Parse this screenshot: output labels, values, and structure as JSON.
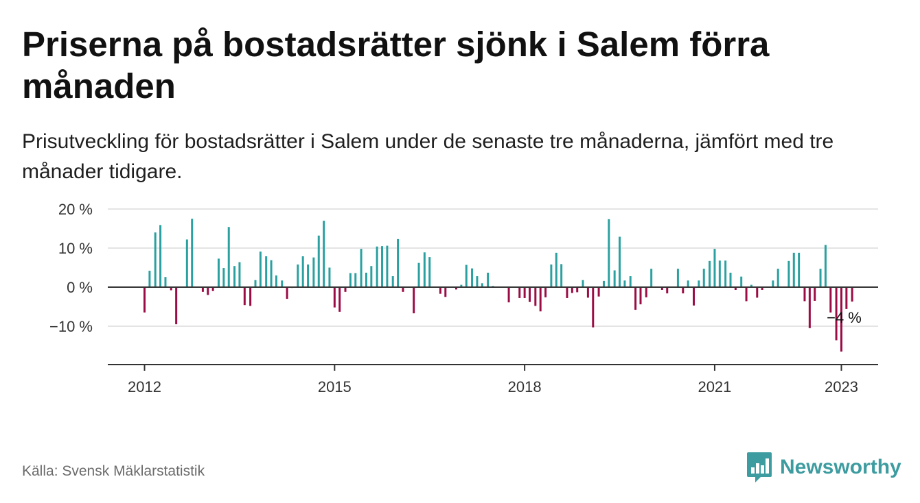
{
  "header": {
    "title": "Priserna på bostadsrätter sjönk i Salem förra månaden",
    "subtitle": "Prisutveckling för bostadsrätter i Salem under de senaste tre månaderna, jämfört med tre månader tidigare."
  },
  "footer": {
    "source": "Källa: Svensk Mäklarstatistik",
    "brand": "Newsworthy"
  },
  "colors": {
    "positive": "#2aa1a0",
    "negative": "#9b0c45",
    "grid": "#dcdcdc",
    "axis": "#333333",
    "brand": "#3d9ca0"
  },
  "chart_data": {
    "type": "bar",
    "ylim": [
      -20,
      20
    ],
    "y_ticks": [
      {
        "value": 20,
        "label": "20 %"
      },
      {
        "value": 10,
        "label": "10 %"
      },
      {
        "value": 0,
        "label": "0 %"
      },
      {
        "value": -10,
        "label": "−10 %"
      }
    ],
    "x_ticks": [
      {
        "value": 2012,
        "label": "2012"
      },
      {
        "value": 2015,
        "label": "2015"
      },
      {
        "value": 2018,
        "label": "2018"
      },
      {
        "value": 2021,
        "label": "2021"
      },
      {
        "value": 2023,
        "label": "2023"
      }
    ],
    "xlim": [
      2011.42,
      2023.58
    ],
    "grid": "horizontal",
    "annotation": {
      "label": "−4 %",
      "x": 2023.0
    },
    "points": [
      [
        2012.0,
        -6.5
      ],
      [
        2012.08,
        4.2
      ],
      [
        2012.17,
        14.0
      ],
      [
        2012.25,
        15.9
      ],
      [
        2012.33,
        2.6
      ],
      [
        2012.42,
        -0.8
      ],
      [
        2012.5,
        -9.5
      ],
      [
        2012.67,
        12.2
      ],
      [
        2012.75,
        17.5
      ],
      [
        2012.92,
        -1.2
      ],
      [
        2013.0,
        -2.0
      ],
      [
        2013.08,
        -1.0
      ],
      [
        2013.17,
        7.3
      ],
      [
        2013.25,
        4.9
      ],
      [
        2013.33,
        15.4
      ],
      [
        2013.42,
        5.4
      ],
      [
        2013.5,
        6.4
      ],
      [
        2013.58,
        -4.6
      ],
      [
        2013.67,
        -4.8
      ],
      [
        2013.75,
        1.8
      ],
      [
        2013.83,
        9.1
      ],
      [
        2013.92,
        7.9
      ],
      [
        2014.0,
        6.9
      ],
      [
        2014.08,
        3.0
      ],
      [
        2014.17,
        1.7
      ],
      [
        2014.25,
        -3.0
      ],
      [
        2014.33,
        -0.2
      ],
      [
        2014.42,
        5.8
      ],
      [
        2014.5,
        7.9
      ],
      [
        2014.58,
        5.8
      ],
      [
        2014.67,
        7.6
      ],
      [
        2014.75,
        13.2
      ],
      [
        2014.83,
        17.0
      ],
      [
        2014.92,
        5.0
      ],
      [
        2015.0,
        -5.2
      ],
      [
        2015.08,
        -6.3
      ],
      [
        2015.17,
        -1.2
      ],
      [
        2015.25,
        3.6
      ],
      [
        2015.33,
        3.6
      ],
      [
        2015.42,
        9.8
      ],
      [
        2015.5,
        3.7
      ],
      [
        2015.58,
        5.4
      ],
      [
        2015.67,
        10.4
      ],
      [
        2015.75,
        10.5
      ],
      [
        2015.83,
        10.6
      ],
      [
        2015.92,
        2.8
      ],
      [
        2016.0,
        12.3
      ],
      [
        2016.08,
        -1.2
      ],
      [
        2016.25,
        -6.7
      ],
      [
        2016.33,
        6.2
      ],
      [
        2016.42,
        8.9
      ],
      [
        2016.5,
        7.7
      ],
      [
        2016.67,
        -1.7
      ],
      [
        2016.75,
        -2.5
      ],
      [
        2016.92,
        -0.6
      ],
      [
        2017.0,
        0.6
      ],
      [
        2017.08,
        5.7
      ],
      [
        2017.17,
        4.8
      ],
      [
        2017.25,
        2.8
      ],
      [
        2017.33,
        1.0
      ],
      [
        2017.42,
        3.7
      ],
      [
        2017.5,
        0.3
      ],
      [
        2017.75,
        -3.9
      ],
      [
        2017.92,
        -2.8
      ],
      [
        2018.0,
        -2.8
      ],
      [
        2018.08,
        -3.8
      ],
      [
        2018.17,
        -4.8
      ],
      [
        2018.25,
        -6.2
      ],
      [
        2018.33,
        -2.6
      ],
      [
        2018.42,
        5.8
      ],
      [
        2018.5,
        8.8
      ],
      [
        2018.58,
        5.9
      ],
      [
        2018.67,
        -2.8
      ],
      [
        2018.75,
        -1.5
      ],
      [
        2018.83,
        -1.3
      ],
      [
        2018.92,
        1.8
      ],
      [
        2019.0,
        -2.7
      ],
      [
        2019.08,
        -10.3
      ],
      [
        2019.17,
        -2.4
      ],
      [
        2019.25,
        1.6
      ],
      [
        2019.33,
        17.4
      ],
      [
        2019.42,
        4.3
      ],
      [
        2019.5,
        12.9
      ],
      [
        2019.58,
        1.7
      ],
      [
        2019.67,
        2.8
      ],
      [
        2019.75,
        -5.8
      ],
      [
        2019.83,
        -4.4
      ],
      [
        2019.92,
        -2.6
      ],
      [
        2020.0,
        4.7
      ],
      [
        2020.17,
        -0.7
      ],
      [
        2020.25,
        -1.6
      ],
      [
        2020.42,
        4.7
      ],
      [
        2020.5,
        -1.6
      ],
      [
        2020.58,
        1.7
      ],
      [
        2020.67,
        -4.7
      ],
      [
        2020.75,
        1.7
      ],
      [
        2020.83,
        4.7
      ],
      [
        2020.92,
        6.7
      ],
      [
        2021.0,
        9.8
      ],
      [
        2021.08,
        6.8
      ],
      [
        2021.17,
        6.8
      ],
      [
        2021.25,
        3.7
      ],
      [
        2021.33,
        -0.7
      ],
      [
        2021.42,
        2.7
      ],
      [
        2021.5,
        -3.6
      ],
      [
        2021.58,
        0.6
      ],
      [
        2021.67,
        -2.7
      ],
      [
        2021.75,
        -0.7
      ],
      [
        2021.92,
        1.7
      ],
      [
        2022.0,
        4.7
      ],
      [
        2022.17,
        6.7
      ],
      [
        2022.25,
        8.8
      ],
      [
        2022.33,
        8.8
      ],
      [
        2022.42,
        -3.6
      ],
      [
        2022.5,
        -10.5
      ],
      [
        2022.58,
        -3.5
      ],
      [
        2022.67,
        4.7
      ],
      [
        2022.75,
        10.8
      ],
      [
        2022.83,
        -6.5
      ],
      [
        2022.92,
        -13.6
      ],
      [
        2023.0,
        -16.5
      ],
      [
        2023.08,
        -5.6
      ],
      [
        2023.17,
        -3.7
      ]
    ]
  }
}
